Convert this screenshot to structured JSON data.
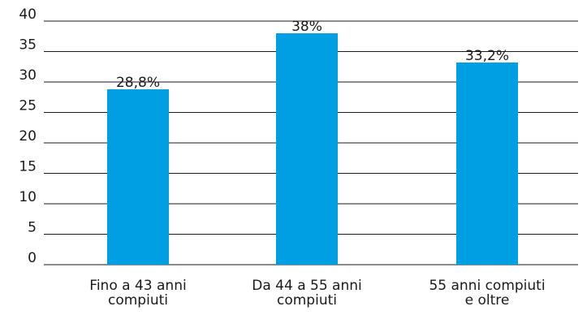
{
  "chart_data": {
    "type": "bar",
    "categories": [
      [
        "Fino a 43 anni",
        "compiuti"
      ],
      [
        "Da 44 a 55 anni",
        "compiuti"
      ],
      [
        "55 anni compiuti",
        "e oltre"
      ]
    ],
    "values": [
      28.8,
      38,
      33.2
    ],
    "data_labels": [
      "28,8%",
      "38%",
      "33,2%"
    ],
    "ylim": [
      0,
      40
    ],
    "yticks": [
      0,
      5,
      10,
      15,
      20,
      25,
      30,
      35,
      40
    ],
    "grid": true,
    "bar_color": "#009ee3",
    "title": "",
    "xlabel": "",
    "ylabel": ""
  }
}
